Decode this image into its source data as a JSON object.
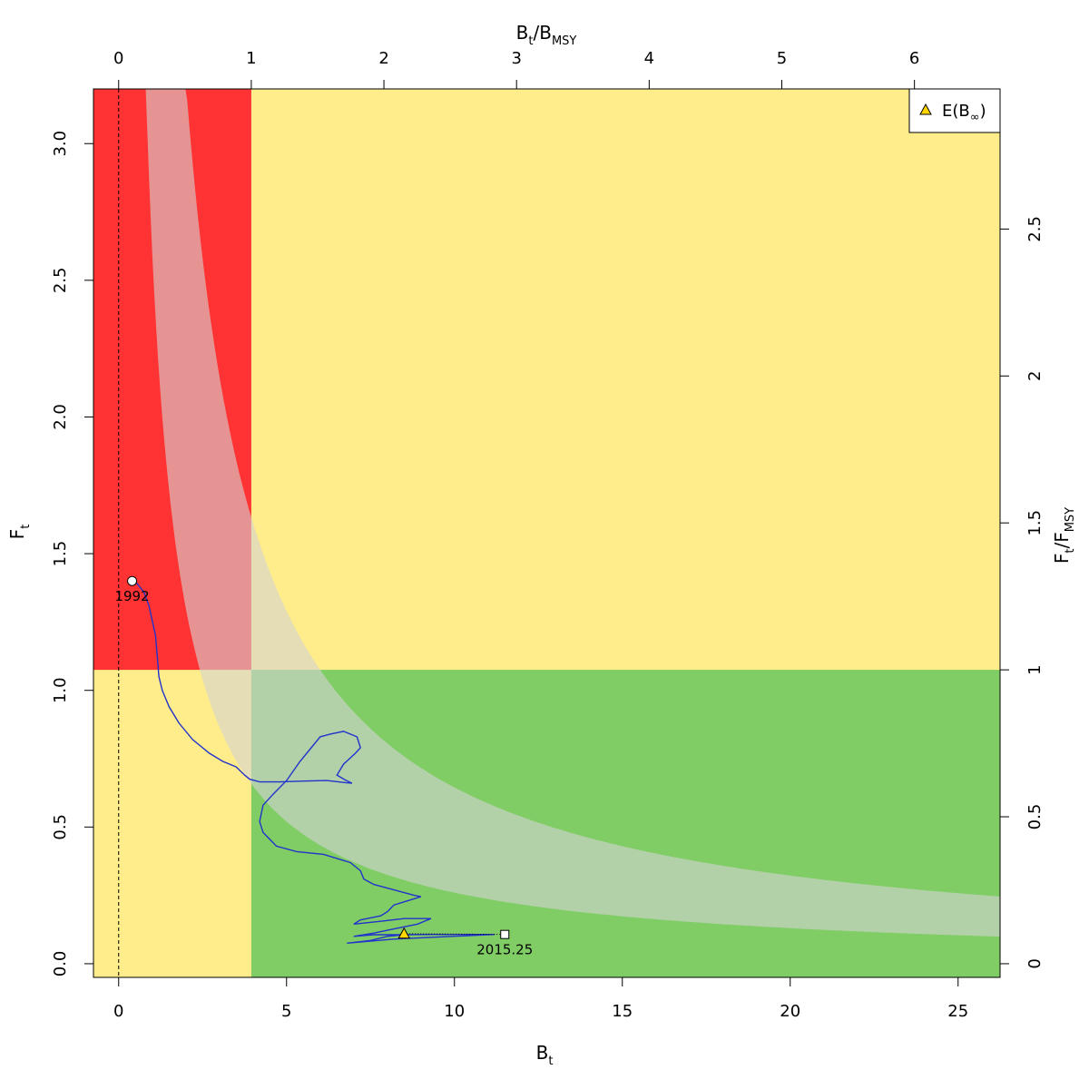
{
  "chart_data": {
    "type": "line",
    "title": "",
    "xlabel": {
      "main": "B",
      "sub": "t"
    },
    "ylabel": {
      "main": "F",
      "sub": "t"
    },
    "top_label": {
      "main1": "B",
      "sub1": "t",
      "sep": "/B",
      "sub2": "MSY"
    },
    "right_label": {
      "main1": "F",
      "sub1": "t",
      "sep": "/F",
      "sub2": "MSY"
    },
    "xlim": [
      -0.75,
      26.25
    ],
    "ylim": [
      -0.05,
      3.2
    ],
    "x_ticks": [
      "0",
      "5",
      "10",
      "15",
      "20",
      "25"
    ],
    "y_ticks": [
      "0.0",
      "0.5",
      "1.0",
      "1.5",
      "2.0",
      "2.5",
      "3.0"
    ],
    "top_ticks": [
      "0",
      "1",
      "2",
      "3",
      "4",
      "5",
      "6"
    ],
    "right_ticks": [
      "0",
      "0.5",
      "1",
      "1.5",
      "2",
      "2.5"
    ],
    "bmsy": 3.95,
    "fmsy": 1.075,
    "msy_band": {
      "lower_msy": 2.6,
      "upper_msy": 6.45
    },
    "zone_colors": {
      "red": "#ff3333",
      "yellow": "#ffec8b",
      "green": "#80cd66",
      "band": "#d3d3d3",
      "trajectory": "#2233cc",
      "triangle": "#ffd700"
    },
    "trajectory": {
      "x": [
        0.4,
        0.55,
        0.75,
        0.9,
        1.1,
        1.2,
        1.3,
        1.5,
        1.8,
        2.2,
        2.7,
        3.1,
        3.5,
        3.75,
        3.9,
        4.2,
        4.8,
        5.5,
        6.2,
        6.7,
        6.95,
        6.75,
        6.5,
        6.7,
        7.05,
        7.2,
        7.1,
        6.7,
        6.3,
        6.0,
        5.8,
        5.4,
        5.0,
        4.6,
        4.3,
        4.2,
        4.3,
        4.7,
        5.3,
        6.1,
        6.9,
        7.2,
        7.3,
        7.6,
        8.2,
        8.8,
        9.0,
        8.6,
        8.2,
        8.0,
        7.8,
        7.2,
        7.0,
        7.8,
        8.5,
        9.1,
        9.3,
        8.9,
        8.3,
        7.6,
        7.0,
        7.6,
        8.4,
        9.4,
        10.4,
        11.0,
        11.2,
        8.2,
        6.8,
        7.5,
        8.0,
        8.5
      ],
      "y": [
        1.4,
        1.39,
        1.36,
        1.31,
        1.2,
        1.05,
        1.0,
        0.94,
        0.88,
        0.82,
        0.77,
        0.74,
        0.72,
        0.69,
        0.675,
        0.665,
        0.665,
        0.668,
        0.67,
        0.663,
        0.66,
        0.672,
        0.69,
        0.73,
        0.77,
        0.79,
        0.83,
        0.85,
        0.84,
        0.83,
        0.8,
        0.74,
        0.67,
        0.62,
        0.58,
        0.52,
        0.48,
        0.43,
        0.41,
        0.4,
        0.37,
        0.34,
        0.31,
        0.29,
        0.27,
        0.25,
        0.245,
        0.23,
        0.215,
        0.19,
        0.175,
        0.16,
        0.145,
        0.155,
        0.165,
        0.165,
        0.165,
        0.145,
        0.13,
        0.112,
        0.1,
        0.106,
        0.106,
        0.107,
        0.107,
        0.107,
        0.107,
        0.09,
        0.075,
        0.085,
        0.1,
        0.106
      ]
    },
    "start_point": {
      "x": 0.4,
      "y": 1.4,
      "label": "1992"
    },
    "end_point": {
      "x": 11.5,
      "y": 0.107,
      "label": "2015.25"
    },
    "expected_point": {
      "x": 8.5,
      "y": 0.11
    },
    "legend": {
      "label_main": "E(B",
      "label_sub": "∞",
      "label_close": ")",
      "position": "top-right"
    }
  }
}
